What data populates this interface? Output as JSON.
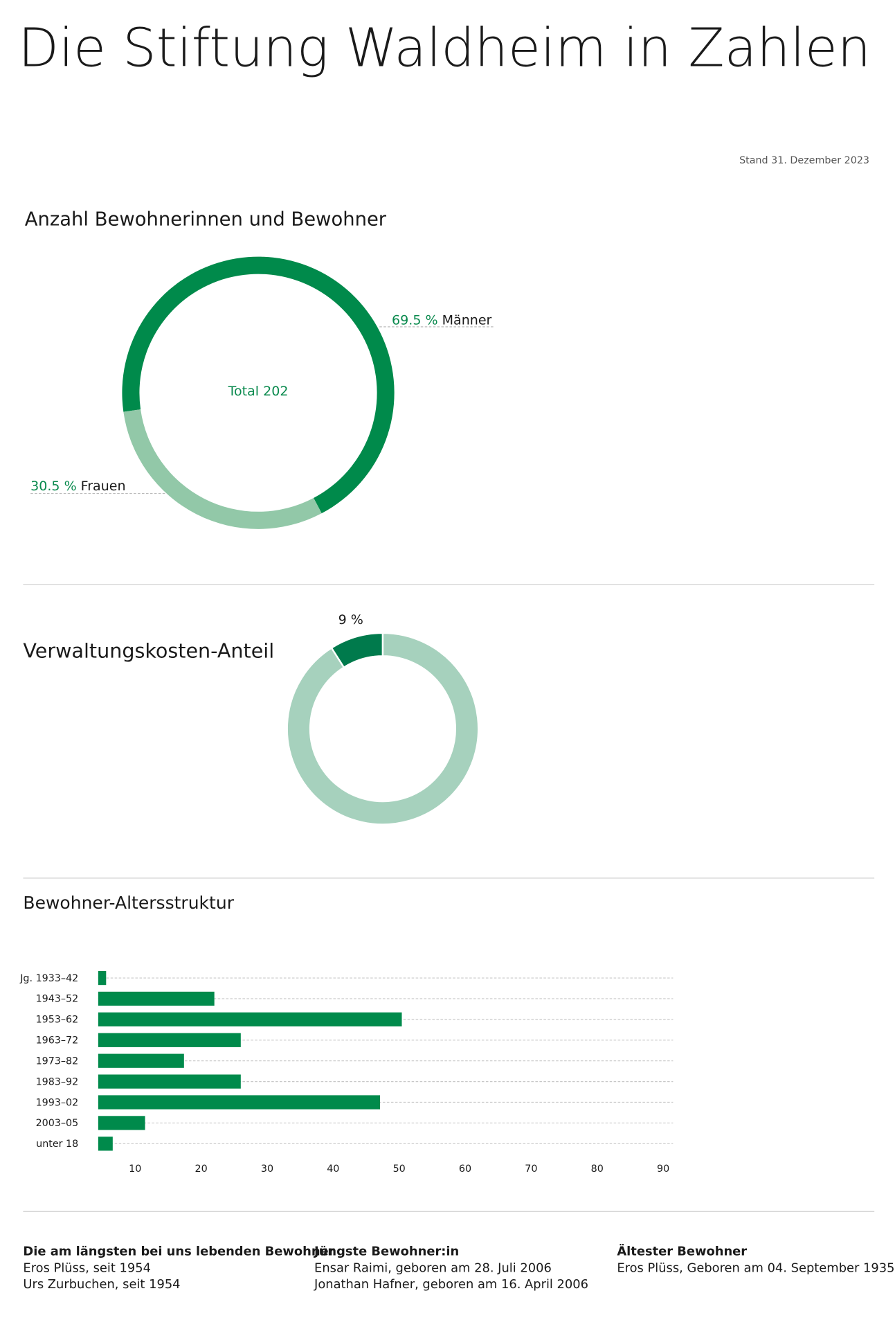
{
  "title": "Die Stiftung Waldheim in Zahlen",
  "date_note": "Stand 31. Dezember 2023",
  "chart_data": [
    {
      "type": "pie",
      "title": "Anzahl Bewohnerinnen und Bewohner",
      "center_label": "Total 202",
      "categories": [
        "Männer",
        "Frauen"
      ],
      "values": [
        69.5,
        30.5
      ],
      "value_labels": [
        "69.5 %",
        "30.5 %"
      ],
      "colors": [
        "#008a4b",
        "#92c8a8"
      ]
    },
    {
      "type": "pie",
      "title": "Verwaltungskosten-Anteil",
      "values": [
        9,
        91
      ],
      "value_labels": [
        "9 %",
        null
      ],
      "colors": [
        "#007a4c",
        "#a6d1bd"
      ]
    },
    {
      "type": "bar",
      "orientation": "horizontal",
      "title": "Bewohner-Altersstruktur",
      "categories": [
        "Jg. 1933–42",
        "1943–52",
        "1953–62",
        "1963–72",
        "1973–82",
        "1983–92",
        "1993–02",
        "2003–05",
        "unter 18"
      ],
      "values": [
        5.6,
        22,
        50.4,
        26,
        17.4,
        26,
        47.1,
        11.5,
        6.6
      ],
      "color": "#008a4b",
      "xlim": [
        4.4,
        91.5
      ],
      "xticks": [
        10,
        20,
        30,
        40,
        50,
        60,
        70,
        80,
        90
      ],
      "grid": true
    }
  ],
  "footer": [
    {
      "heading": "Die am längsten bei uns lebenden Bewohner",
      "lines": [
        "Eros Plüss, seit 1954",
        "Urs Zurbuchen, seit 1954"
      ]
    },
    {
      "heading": "Jüngste Bewohner:in",
      "lines": [
        "Ensar Raimi, geboren am 28. Juli 2006",
        "Jonathan Hafner, geboren am 16. April 2006"
      ]
    },
    {
      "heading": "Ältester Bewohner",
      "lines": [
        "Eros Plüss, Geboren am 04. September 1935"
      ]
    }
  ]
}
